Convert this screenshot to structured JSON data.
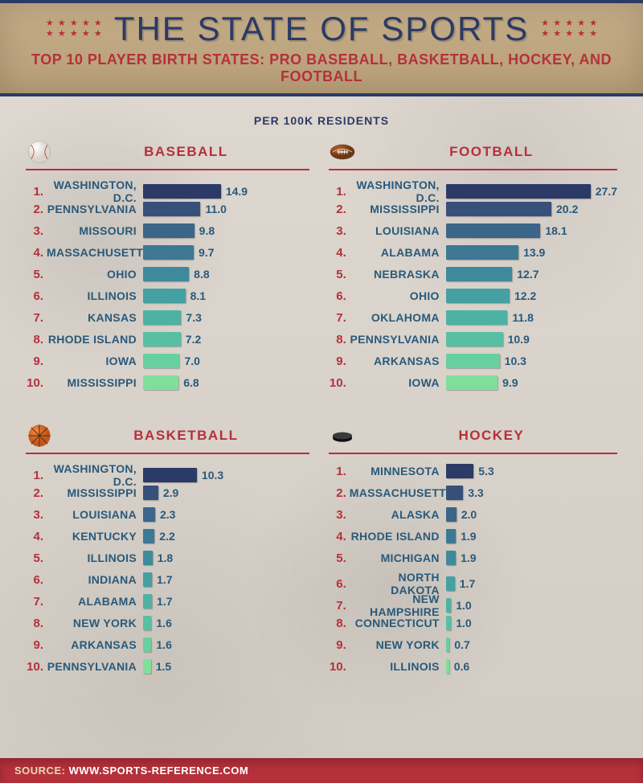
{
  "header": {
    "title": "THE STATE OF SPORTS",
    "subtitle": "TOP 10 PLAYER BIRTH STATES: PRO BASEBALL, BASKETBALL, HOCKEY, AND FOOTBALL",
    "title_color": "#2b3a66",
    "subtitle_color": "#b5303a",
    "star_color": "#b5303a",
    "bg_color": "#bba37c"
  },
  "per100k_label": "PER 100K RESIDENTS",
  "source_label": "SOURCE:",
  "source_url": "WWW.SPORTS-REFERENCE.COM",
  "bar_gradient": [
    "#2b3a66",
    "#36507a",
    "#3b6589",
    "#3d7894",
    "#3f8a9a",
    "#45a0a3",
    "#4eb2a3",
    "#58c0a2",
    "#68cf9f",
    "#80de9a"
  ],
  "label_color": "#29597a",
  "rank_color": "#b5303a",
  "panels": [
    {
      "key": "baseball",
      "title": "BASEBALL",
      "icon": "baseball",
      "max_scale": 27.7,
      "rows": [
        {
          "rank": "1.",
          "state": "WASHINGTON, D.C.",
          "value": 14.9
        },
        {
          "rank": "2.",
          "state": "PENNSYLVANIA",
          "value": 11.0
        },
        {
          "rank": "3.",
          "state": "MISSOURI",
          "value": 9.8
        },
        {
          "rank": "4.",
          "state": "MASSACHUSETTS",
          "value": 9.7
        },
        {
          "rank": "5.",
          "state": "OHIO",
          "value": 8.8
        },
        {
          "rank": "6.",
          "state": "ILLINOIS",
          "value": 8.1
        },
        {
          "rank": "7.",
          "state": "KANSAS",
          "value": 7.3
        },
        {
          "rank": "8.",
          "state": "RHODE ISLAND",
          "value": 7.2
        },
        {
          "rank": "9.",
          "state": "IOWA",
          "value": 7.0
        },
        {
          "rank": "10.",
          "state": "MISSISSIPPI",
          "value": 6.8
        }
      ]
    },
    {
      "key": "football",
      "title": "FOOTBALL",
      "icon": "football",
      "max_scale": 27.7,
      "rows": [
        {
          "rank": "1.",
          "state": "WASHINGTON, D.C.",
          "value": 27.7
        },
        {
          "rank": "2.",
          "state": "MISSISSIPPI",
          "value": 20.2
        },
        {
          "rank": "3.",
          "state": "LOUISIANA",
          "value": 18.1
        },
        {
          "rank": "4.",
          "state": "ALABAMA",
          "value": 13.9
        },
        {
          "rank": "5.",
          "state": "NEBRASKA",
          "value": 12.7
        },
        {
          "rank": "6.",
          "state": "OHIO",
          "value": 12.2
        },
        {
          "rank": "7.",
          "state": "OKLAHOMA",
          "value": 11.8
        },
        {
          "rank": "8.",
          "state": "PENNSYLVANIA",
          "value": 10.9
        },
        {
          "rank": "9.",
          "state": "ARKANSAS",
          "value": 10.3
        },
        {
          "rank": "10.",
          "state": "IOWA",
          "value": 9.9
        }
      ]
    },
    {
      "key": "basketball",
      "title": "BASKETBALL",
      "icon": "basketball",
      "max_scale": 27.7,
      "rows": [
        {
          "rank": "1.",
          "state": "WASHINGTON, D.C.",
          "value": 10.3
        },
        {
          "rank": "2.",
          "state": "MISSISSIPPI",
          "value": 2.9
        },
        {
          "rank": "3.",
          "state": "LOUISIANA",
          "value": 2.3
        },
        {
          "rank": "4.",
          "state": "KENTUCKY",
          "value": 2.2
        },
        {
          "rank": "5.",
          "state": "ILLINOIS",
          "value": 1.8
        },
        {
          "rank": "6.",
          "state": "INDIANA",
          "value": 1.7
        },
        {
          "rank": "7.",
          "state": "ALABAMA",
          "value": 1.7
        },
        {
          "rank": "8.",
          "state": "NEW YORK",
          "value": 1.6
        },
        {
          "rank": "9.",
          "state": "ARKANSAS",
          "value": 1.6
        },
        {
          "rank": "10.",
          "state": "PENNSYLVANIA",
          "value": 1.5
        }
      ]
    },
    {
      "key": "hockey",
      "title": "HOCKEY",
      "icon": "hockey",
      "max_scale": 27.7,
      "rows": [
        {
          "rank": "1.",
          "state": "MINNESOTA",
          "value": 5.3
        },
        {
          "rank": "2.",
          "state": "MASSACHUSETTS",
          "value": 3.3
        },
        {
          "rank": "3.",
          "state": "ALASKA",
          "value": 2.0
        },
        {
          "rank": "4.",
          "state": "RHODE ISLAND",
          "value": 1.9
        },
        {
          "rank": "5.",
          "state": "MICHIGAN",
          "value": 1.9
        },
        {
          "rank": "6.",
          "state": "NORTH DAKOTA",
          "value": 1.7
        },
        {
          "rank": "7.",
          "state": "NEW HAMPSHIRE",
          "value": 1.0
        },
        {
          "rank": "8.",
          "state": "CONNECTICUT",
          "value": 1.0
        },
        {
          "rank": "9.",
          "state": "NEW YORK",
          "value": 0.7
        },
        {
          "rank": "10.",
          "state": "ILLINOIS",
          "value": 0.6
        }
      ]
    }
  ]
}
